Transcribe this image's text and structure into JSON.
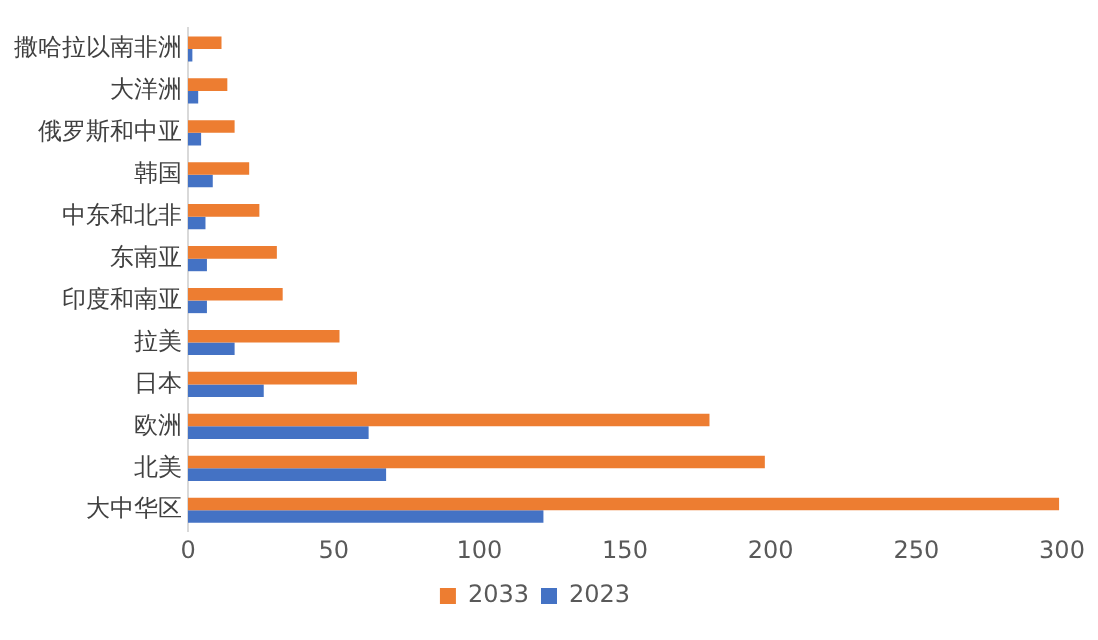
{
  "chart_data": {
    "type": "bar",
    "orientation": "horizontal",
    "categories": [
      "撒哈拉以南非洲",
      "大洋洲",
      "俄罗斯和中亚",
      "韩国",
      "中东和北非",
      "东南亚",
      "印度和南亚",
      "拉美",
      "日本",
      "欧洲",
      "北美",
      "大中华区"
    ],
    "series": [
      {
        "name": "2033",
        "color": "#ed7d31",
        "values": [
          11.5,
          13.5,
          16,
          21,
          24.5,
          30.5,
          32.5,
          52,
          58,
          179,
          198,
          299
        ]
      },
      {
        "name": "2023",
        "color": "#4472c4",
        "values": [
          1.5,
          3.5,
          4.5,
          8.5,
          6,
          6.5,
          6.5,
          16,
          26,
          62,
          68,
          122
        ]
      }
    ],
    "xlim": [
      0,
      300
    ],
    "xticks": [
      0,
      50,
      100,
      150,
      200,
      250,
      300
    ],
    "grid": false,
    "legend": "bottom"
  }
}
